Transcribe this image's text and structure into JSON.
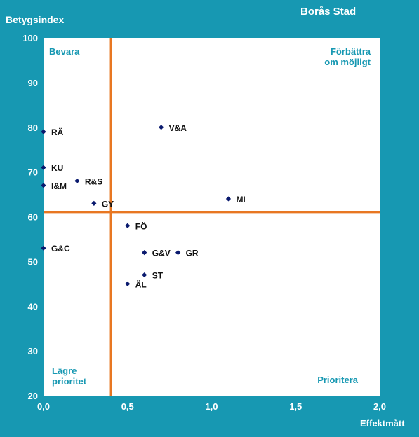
{
  "header": {
    "title": "Borås Stad"
  },
  "chart_data": {
    "type": "scatter",
    "title": "Borås Stad",
    "ylabel": "Betygsindex",
    "xlabel": "Effektmått",
    "xlim": [
      0,
      2
    ],
    "ylim": [
      20,
      100
    ],
    "x_ticks": [
      "0,0",
      "0,5",
      "1,0",
      "1,5",
      "2,0"
    ],
    "y_ticks": [
      "20",
      "30",
      "40",
      "50",
      "60",
      "70",
      "80",
      "90",
      "100"
    ],
    "grid": false,
    "reference_lines": {
      "x": 0.4,
      "y": 61,
      "color": "#e87722"
    },
    "quadrants": {
      "top_left": [
        "Bevara"
      ],
      "top_right": [
        "Förbättra",
        "om möjligt"
      ],
      "bottom_left": [
        "Lägre",
        "prioritet"
      ],
      "bottom_right": [
        "Prioritera"
      ]
    },
    "points": [
      {
        "label": "RÄ",
        "x": 0.0,
        "y": 79
      },
      {
        "label": "KU",
        "x": 0.0,
        "y": 71
      },
      {
        "label": "I&M",
        "x": 0.0,
        "y": 67
      },
      {
        "label": "G&C",
        "x": 0.0,
        "y": 53
      },
      {
        "label": "R&S",
        "x": 0.2,
        "y": 68
      },
      {
        "label": "GY",
        "x": 0.3,
        "y": 63
      },
      {
        "label": "V&A",
        "x": 0.7,
        "y": 80
      },
      {
        "label": "MI",
        "x": 1.1,
        "y": 64
      },
      {
        "label": "FÖ",
        "x": 0.5,
        "y": 58
      },
      {
        "label": "G&V",
        "x": 0.6,
        "y": 52
      },
      {
        "label": "GR",
        "x": 0.8,
        "y": 52
      },
      {
        "label": "ST",
        "x": 0.6,
        "y": 47
      },
      {
        "label": "ÄL",
        "x": 0.5,
        "y": 45
      }
    ],
    "marker_color": "#0a1a6e"
  }
}
